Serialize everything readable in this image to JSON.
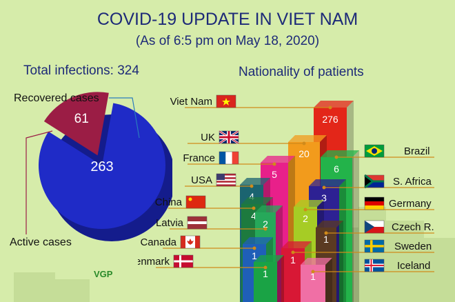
{
  "title": "COVID-19 UPDATE IN VIET NAM",
  "subtitle": "(As of 6:5 pm on May 18, 2020)",
  "total_label": "Total infections: 324",
  "pie_labels": {
    "recovered": "Recovered cases",
    "active": "Active cases"
  },
  "bar_header": "Nationality of patients",
  "watermark": "VGP",
  "colors": {
    "background": "#d6ecaa",
    "title": "#1d2a78",
    "recovered": "#9b1d45",
    "active": "#1f2bc7"
  },
  "chart_data": [
    {
      "type": "pie",
      "categories": [
        "Recovered cases",
        "Active cases"
      ],
      "values": [
        61,
        263
      ]
    },
    {
      "type": "bar",
      "categories": [
        "Viet Nam",
        "UK",
        "France",
        "USA",
        "China",
        "Latvia",
        "Canada",
        "Denmark",
        "Brazil",
        "S. Africa",
        "Germany",
        "Czech R.",
        "Sweden",
        "Iceland"
      ],
      "values": [
        276,
        20,
        5,
        4,
        4,
        2,
        1,
        1,
        6,
        3,
        2,
        1,
        1,
        1
      ],
      "labels": [
        "276",
        "20",
        "5",
        "4",
        "4",
        "2",
        "1",
        "1",
        "6",
        "3",
        "2",
        "1",
        "1",
        "1"
      ]
    }
  ]
}
